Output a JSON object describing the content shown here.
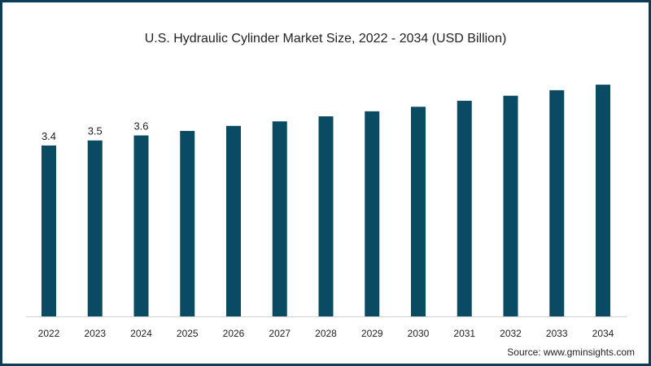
{
  "chart_data": {
    "type": "bar",
    "title": "U.S. Hydraulic Cylinder Market Size, 2022 - 2034 (USD Billion)",
    "xlabel": "",
    "ylabel": "",
    "categories": [
      "2022",
      "2023",
      "2024",
      "2025",
      "2026",
      "2027",
      "2028",
      "2029",
      "2030",
      "2031",
      "2032",
      "2033",
      "2034"
    ],
    "values": [
      3.4,
      3.5,
      3.6,
      3.69,
      3.79,
      3.88,
      3.98,
      4.08,
      4.17,
      4.29,
      4.39,
      4.5,
      4.61
    ],
    "data_labels": [
      "3.4",
      "3.5",
      "3.6",
      "",
      "",
      "",
      "",
      "",
      "",
      "",
      "",
      "",
      ""
    ],
    "ylim": [
      0,
      5
    ],
    "grid": false,
    "bar_color": "#0b4a63",
    "source": "Source: www.gminsights.com"
  }
}
